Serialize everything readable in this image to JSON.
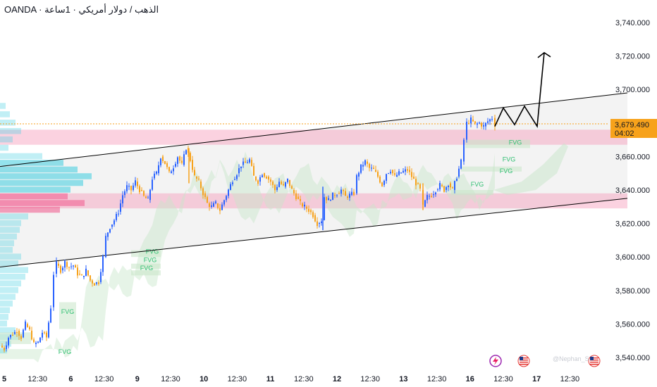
{
  "header": {
    "title": "OANDA · الذهب / دولار أمريكي · 1ساعة"
  },
  "price_badge": {
    "price": "3,679.490",
    "countdown": "04:02"
  },
  "fvg_label": "FVG",
  "watermark": "@Nephan_S",
  "colors": {
    "up": "#2962ff",
    "down": "#f7a21b",
    "zone": "#f48fb1",
    "cloud": "#c8e6c9",
    "channel": "#000000",
    "price_line": "#f7a21b",
    "badge_bg": "#f7a21b"
  },
  "icons": {
    "event_1": "lightning-icon",
    "event_2": "us-flag-icon",
    "event_3": "us-flag-icon"
  },
  "chart_data": {
    "type": "candlestick",
    "title": "",
    "y_ticks": [
      "3,540.000",
      "3,560.000",
      "3,580.000",
      "3,600.000",
      "3,620.000",
      "3,640.000",
      "3,660.000",
      "3,680.000",
      "3,700.000",
      "3,720.000",
      "3,740.000"
    ],
    "y_range": [
      3533,
      3745
    ],
    "x_ticks": [
      {
        "label": "5",
        "bold": true
      },
      {
        "label": "12:30",
        "bold": false
      },
      {
        "label": "6",
        "bold": true
      },
      {
        "label": "12:30",
        "bold": false
      },
      {
        "label": "9",
        "bold": true
      },
      {
        "label": "12:30",
        "bold": false
      },
      {
        "label": "10",
        "bold": true
      },
      {
        "label": "12:30",
        "bold": false
      },
      {
        "label": "11",
        "bold": true
      },
      {
        "label": "12:30",
        "bold": false
      },
      {
        "label": "12",
        "bold": true
      },
      {
        "label": "12:30",
        "bold": false
      },
      {
        "label": "13",
        "bold": true
      },
      {
        "label": "12:30",
        "bold": false
      },
      {
        "label": "16",
        "bold": true
      },
      {
        "label": "12:30",
        "bold": false
      },
      {
        "label": "17",
        "bold": true
      },
      {
        "label": "12:30",
        "bold": false
      }
    ],
    "path_points": [
      [
        0,
        3547
      ],
      [
        6,
        3545
      ],
      [
        12,
        3552
      ],
      [
        18,
        3554
      ],
      [
        24,
        3556
      ],
      [
        30,
        3552
      ],
      [
        36,
        3560
      ],
      [
        42,
        3556
      ],
      [
        48,
        3548
      ],
      [
        54,
        3549
      ],
      [
        60,
        3555
      ],
      [
        66,
        3552
      ],
      [
        72,
        3570
      ],
      [
        76,
        3590
      ],
      [
        80,
        3596
      ],
      [
        86,
        3592
      ],
      [
        92,
        3597
      ],
      [
        98,
        3594
      ],
      [
        104,
        3595
      ],
      [
        110,
        3590
      ],
      [
        116,
        3588
      ],
      [
        122,
        3592
      ],
      [
        128,
        3586
      ],
      [
        134,
        3584
      ],
      [
        140,
        3585
      ],
      [
        146,
        3600
      ],
      [
        150,
        3612
      ],
      [
        156,
        3618
      ],
      [
        162,
        3622
      ],
      [
        168,
        3627
      ],
      [
        174,
        3637
      ],
      [
        180,
        3642
      ],
      [
        186,
        3640
      ],
      [
        192,
        3645
      ],
      [
        198,
        3640
      ],
      [
        204,
        3636
      ],
      [
        210,
        3634
      ],
      [
        216,
        3647
      ],
      [
        222,
        3650
      ],
      [
        228,
        3660
      ],
      [
        234,
        3656
      ],
      [
        240,
        3650
      ],
      [
        246,
        3654
      ],
      [
        252,
        3660
      ],
      [
        258,
        3655
      ],
      [
        264,
        3665
      ],
      [
        270,
        3658
      ],
      [
        276,
        3648
      ],
      [
        282,
        3645
      ],
      [
        288,
        3638
      ],
      [
        294,
        3632
      ],
      [
        300,
        3630
      ],
      [
        306,
        3632
      ],
      [
        312,
        3628
      ],
      [
        318,
        3634
      ],
      [
        324,
        3640
      ],
      [
        330,
        3646
      ],
      [
        336,
        3650
      ],
      [
        342,
        3655
      ],
      [
        348,
        3656
      ],
      [
        354,
        3658
      ],
      [
        360,
        3648
      ],
      [
        366,
        3645
      ],
      [
        372,
        3650
      ],
      [
        378,
        3648
      ],
      [
        384,
        3645
      ],
      [
        390,
        3640
      ],
      [
        396,
        3645
      ],
      [
        402,
        3642
      ],
      [
        408,
        3646
      ],
      [
        414,
        3640
      ],
      [
        420,
        3636
      ],
      [
        426,
        3632
      ],
      [
        432,
        3630
      ],
      [
        438,
        3628
      ],
      [
        444,
        3625
      ],
      [
        450,
        3620
      ],
      [
        456,
        3622
      ],
      [
        460,
        3636
      ],
      [
        466,
        3634
      ],
      [
        472,
        3637
      ],
      [
        478,
        3638
      ],
      [
        484,
        3640
      ],
      [
        490,
        3636
      ],
      [
        496,
        3637
      ],
      [
        502,
        3638
      ],
      [
        506,
        3648
      ],
      [
        512,
        3654
      ],
      [
        518,
        3657
      ],
      [
        524,
        3653
      ],
      [
        530,
        3652
      ],
      [
        536,
        3648
      ],
      [
        542,
        3643
      ],
      [
        548,
        3650
      ],
      [
        554,
        3652
      ],
      [
        560,
        3648
      ],
      [
        566,
        3650
      ],
      [
        572,
        3651
      ],
      [
        578,
        3652
      ],
      [
        584,
        3648
      ],
      [
        590,
        3644
      ],
      [
        596,
        3640
      ],
      [
        600,
        3630
      ],
      [
        606,
        3636
      ],
      [
        612,
        3637
      ],
      [
        618,
        3640
      ],
      [
        624,
        3643
      ],
      [
        630,
        3640
      ],
      [
        636,
        3644
      ],
      [
        642,
        3640
      ],
      [
        648,
        3648
      ],
      [
        654,
        3657
      ],
      [
        658,
        3670
      ],
      [
        662,
        3680
      ],
      [
        668,
        3682
      ],
      [
        674,
        3679
      ],
      [
        680,
        3680
      ],
      [
        686,
        3678
      ],
      [
        692,
        3681
      ],
      [
        698,
        3683
      ],
      [
        702,
        3679
      ]
    ],
    "channel_lines": [
      {
        "x0": 0,
        "y0": 3654,
        "x1": 890,
        "y1": 3698
      },
      {
        "x0": 0,
        "y0": 3594,
        "x1": 890,
        "y1": 3635
      }
    ],
    "zones": [
      {
        "x0": 0,
        "x1": 890,
        "y0": 3667,
        "y1": 3676
      },
      {
        "x0": 0,
        "x1": 890,
        "y0": 3629,
        "y1": 3638
      }
    ],
    "fvg_zones": [
      {
        "x0": 0,
        "x1": 44,
        "y0": 3548,
        "y1": 3555
      },
      {
        "x0": 84,
        "x1": 108,
        "y0": 3557,
        "y1": 3573
      },
      {
        "x0": 186,
        "x1": 228,
        "y0": 3600,
        "y1": 3604
      },
      {
        "x0": 186,
        "x1": 228,
        "y0": 3593,
        "y1": 3596
      },
      {
        "x0": 186,
        "x1": 228,
        "y0": 3589,
        "y1": 3592
      },
      {
        "x0": 660,
        "x1": 752,
        "y0": 3665,
        "y1": 3670
      },
      {
        "x0": 654,
        "x1": 740,
        "y0": 3651,
        "y1": 3654
      },
      {
        "x0": 640,
        "x1": 700,
        "y0": 3637,
        "y1": 3640
      }
    ],
    "fvg_labels": [
      {
        "x": 92,
        "y": 3542
      },
      {
        "x": 96,
        "y": 3566
      },
      {
        "x": 216,
        "y": 3602
      },
      {
        "x": 213,
        "y": 3597
      },
      {
        "x": 208,
        "y": 3592
      },
      {
        "x": 731,
        "y": 3667
      },
      {
        "x": 722,
        "y": 3657
      },
      {
        "x": 718,
        "y": 3650
      },
      {
        "x": 677,
        "y": 3642
      }
    ],
    "projection": [
      [
        702,
        3678
      ],
      [
        714,
        3689
      ],
      [
        730,
        3679
      ],
      [
        744,
        3690
      ],
      [
        762,
        3678
      ],
      [
        772,
        3722
      ]
    ],
    "current_price": 3679.49
  }
}
